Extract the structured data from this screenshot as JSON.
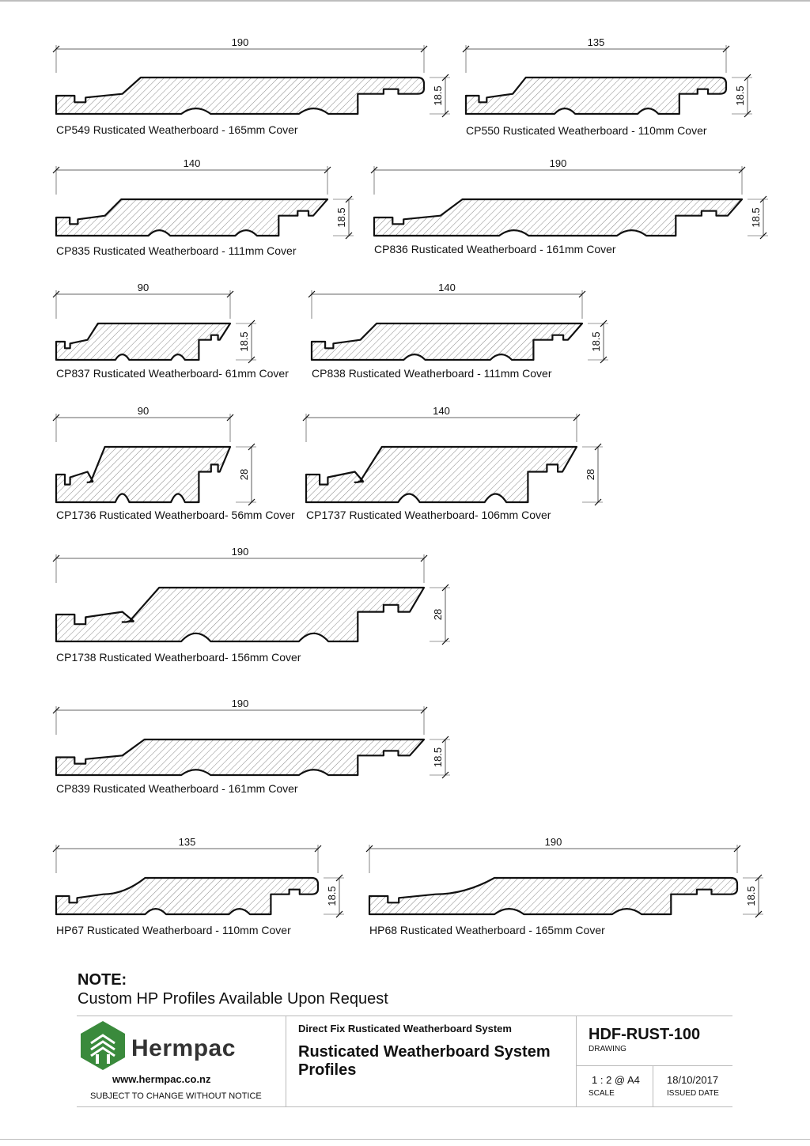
{
  "profiles": [
    {
      "width": "190",
      "thickness": "18.5",
      "caption": "CP549 Rusticated Weatherboard - 165mm Cover"
    },
    {
      "width": "135",
      "thickness": "18.5",
      "caption": "CP550 Rusticated Weatherboard - 110mm Cover"
    },
    {
      "width": "140",
      "thickness": "18.5",
      "caption": "CP835 Rusticated Weatherboard - 111mm Cover"
    },
    {
      "width": "190",
      "thickness": "18.5",
      "caption": "CP836 Rusticated Weatherboard - 161mm Cover"
    },
    {
      "width": "90",
      "thickness": "18.5",
      "caption": "CP837 Rusticated Weatherboard- 61mm Cover"
    },
    {
      "width": "140",
      "thickness": "18.5",
      "caption": "CP838 Rusticated Weatherboard   - 111mm Cover"
    },
    {
      "width": "90",
      "thickness": "28",
      "caption": "CP1736 Rusticated Weatherboard- 56mm Cover"
    },
    {
      "width": "140",
      "thickness": "28",
      "caption": "CP1737 Rusticated Weatherboard- 106mm Cover"
    },
    {
      "width": "190",
      "thickness": "28",
      "caption": "CP1738 Rusticated Weatherboard- 156mm Cover"
    },
    {
      "width": "190",
      "thickness": "18.5",
      "caption": "CP839 Rusticated Weatherboard - 161mm Cover"
    },
    {
      "width": "135",
      "thickness": "18.5",
      "caption": "HP67 Rusticated Weatherboard - 110mm Cover"
    },
    {
      "width": "190",
      "thickness": "18.5",
      "caption": "HP68 Rusticated Weatherboard - 165mm Cover"
    }
  ],
  "note": {
    "heading": "NOTE:",
    "text": "Custom HP Profiles Available Upon Request"
  },
  "title_block": {
    "brand": "Hermpac",
    "brand_color": "#3a8a3c",
    "website": "www.hermpac.co.nz",
    "disclaimer": "SUBJECT TO CHANGE WITHOUT NOTICE",
    "system": "Direct Fix Rusticated Weatherboard System",
    "title": "Rusticated Weatherboard System Profiles",
    "drawing_no": "HDF-RUST-100",
    "drawing_label": "DRAWING",
    "scale": "1 : 2 @ A4",
    "scale_label": "SCALE",
    "issued_date": "18/10/2017",
    "issued_label": "ISSUED DATE"
  }
}
